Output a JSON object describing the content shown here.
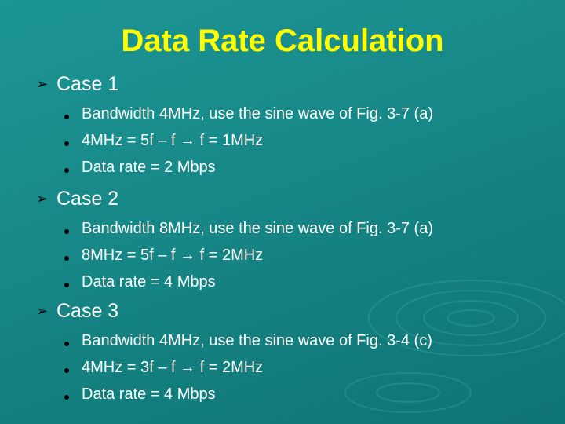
{
  "title": "Data Rate Calculation",
  "sections": [
    {
      "heading": "Case 1",
      "bullets": [
        "Bandwidth 4MHz, use the sine wave of Fig. 3-7 (a)",
        "4MHz = 5f – f → f = 1MHz",
        "Data rate = 2 Mbps"
      ]
    },
    {
      "heading": "Case 2",
      "bullets": [
        "Bandwidth 8MHz, use the sine wave of Fig. 3-7 (a)",
        "8MHz = 5f – f → f = 2MHz",
        "Data rate = 4 Mbps"
      ]
    },
    {
      "heading": "Case 3",
      "bullets": [
        "Bandwidth 4MHz, use the sine wave of Fig. 3-4 (c)",
        "4MHz = 3f – f → f = 2MHz",
        "Data rate = 4 Mbps"
      ]
    }
  ]
}
